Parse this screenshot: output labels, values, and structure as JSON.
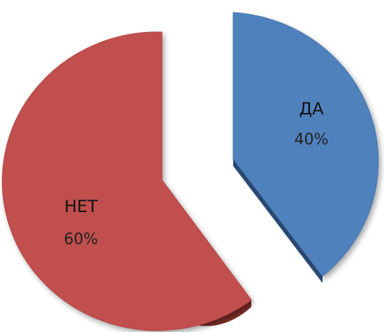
{
  "chart_data": {
    "type": "pie",
    "exploded": true,
    "three_d": true,
    "slices": [
      {
        "label": "ДА",
        "value": 40,
        "value_text": "40%",
        "color": "#4f81bd",
        "side_color": "#2d4f7c"
      },
      {
        "label": "НЕТ",
        "value": 60,
        "value_text": "60%",
        "color": "#c0504d",
        "side_color": "#7e2d2a"
      }
    ]
  }
}
